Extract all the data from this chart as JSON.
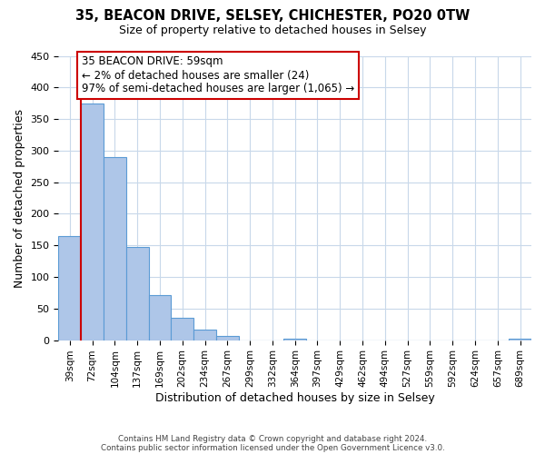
{
  "title": "35, BEACON DRIVE, SELSEY, CHICHESTER, PO20 0TW",
  "subtitle": "Size of property relative to detached houses in Selsey",
  "xlabel": "Distribution of detached houses by size in Selsey",
  "ylabel": "Number of detached properties",
  "bar_labels": [
    "39sqm",
    "72sqm",
    "104sqm",
    "137sqm",
    "169sqm",
    "202sqm",
    "234sqm",
    "267sqm",
    "299sqm",
    "332sqm",
    "364sqm",
    "397sqm",
    "429sqm",
    "462sqm",
    "494sqm",
    "527sqm",
    "559sqm",
    "592sqm",
    "624sqm",
    "657sqm",
    "689sqm"
  ],
  "bar_values": [
    165,
    375,
    290,
    148,
    72,
    35,
    16,
    6,
    0,
    0,
    2,
    0,
    0,
    0,
    0,
    0,
    0,
    0,
    0,
    0,
    3
  ],
  "bar_color": "#aec6e8",
  "bar_edge_color": "#5b9bd5",
  "highlight_line_color": "#cc0000",
  "annotation_title": "35 BEACON DRIVE: 59sqm",
  "annotation_line1": "← 2% of detached houses are smaller (24)",
  "annotation_line2": "97% of semi-detached houses are larger (1,065) →",
  "annotation_box_color": "#ffffff",
  "annotation_box_edge_color": "#cc0000",
  "ylim": [
    0,
    450
  ],
  "yticks": [
    0,
    50,
    100,
    150,
    200,
    250,
    300,
    350,
    400,
    450
  ],
  "grid_color": "#c8d8ea",
  "background_color": "#ffffff",
  "footer1": "Contains HM Land Registry data © Crown copyright and database right 2024.",
  "footer2": "Contains public sector information licensed under the Open Government Licence v3.0."
}
